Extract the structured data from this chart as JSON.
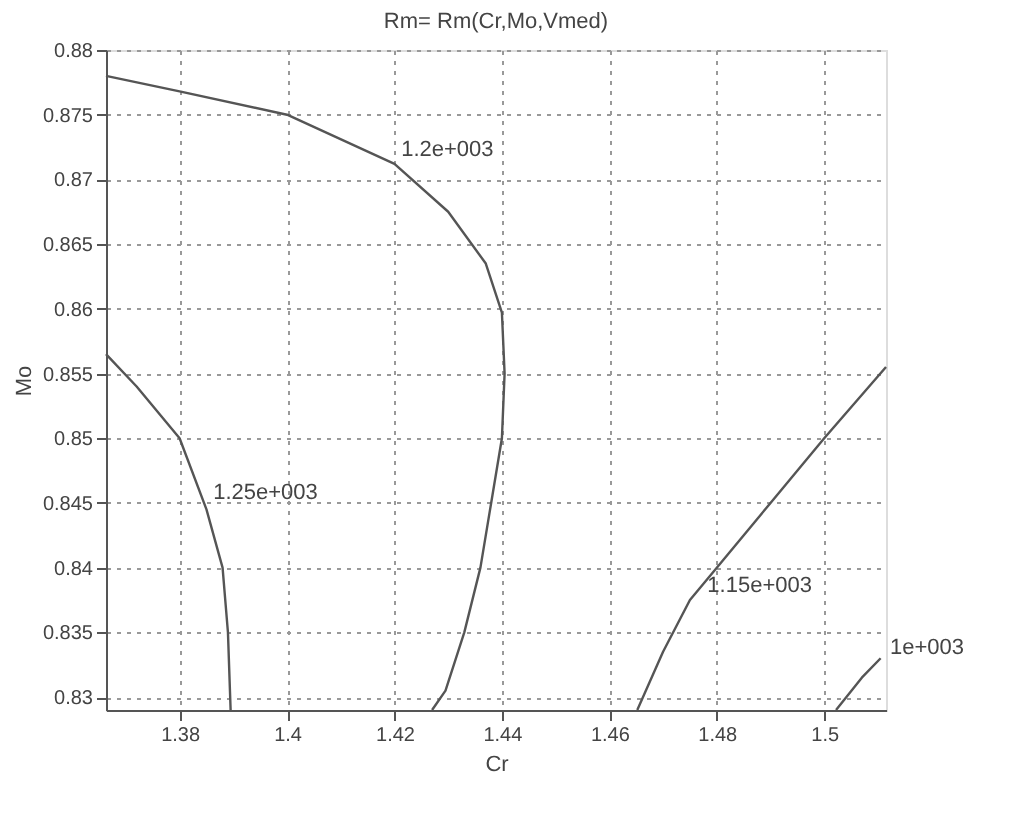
{
  "chart_data": {
    "type": "line",
    "title": "Rm= Rm(Cr,Mo,Vmed)",
    "xlabel": "Cr",
    "ylabel": "Mo",
    "series": [
      {
        "color": "#555555",
        "x": [
          1.3663,
          1.38,
          1.4,
          1.42,
          1.43,
          1.437,
          1.44,
          1.4405,
          1.44,
          1.438,
          1.436,
          1.433,
          1.4295,
          1.427
        ],
        "values": [
          0.878,
          0.8768,
          0.875,
          0.8712,
          0.8675,
          0.8635,
          0.8597,
          0.855,
          0.85,
          0.845,
          0.84,
          0.835,
          0.8305,
          0.829
        ]
      },
      {
        "color": "#555555",
        "x": [
          1.3663,
          1.372,
          1.38,
          1.385,
          1.388,
          1.389,
          1.3895
        ],
        "values": [
          0.8565,
          0.854,
          0.85,
          0.8445,
          0.84,
          0.835,
          0.829
        ]
      },
      {
        "color": "#555555",
        "x": [
          1.4652,
          1.47,
          1.475,
          1.48,
          1.49,
          1.5,
          1.5115
        ],
        "values": [
          0.829,
          0.8335,
          0.8375,
          0.84,
          0.845,
          0.85,
          0.8555
        ]
      },
      {
        "color": "#555555",
        "x": [
          1.5022,
          1.507,
          1.5105
        ],
        "values": [
          0.829,
          0.8315,
          0.833
        ]
      }
    ],
    "annotations": [
      {
        "text": "1.2e+003",
        "x": 1.4205,
        "y": 0.8715
      },
      {
        "text": "1.25e+003",
        "x": 1.3855,
        "y": 0.845
      },
      {
        "text": "1.15e+003",
        "x": 1.4775,
        "y": 0.8378
      },
      {
        "text": "1e+003",
        "x": 1.5115,
        "y": 0.833
      }
    ],
    "xlim": [
      1.3663,
      1.5115
    ],
    "ylim": [
      0.829,
      0.88
    ],
    "xticks": [
      1.38,
      1.4,
      1.42,
      1.44,
      1.46,
      1.48,
      1.5
    ],
    "yticks": [
      0.83,
      0.835,
      0.84,
      0.845,
      0.85,
      0.855,
      0.86,
      0.865,
      0.87,
      0.875,
      0.88
    ],
    "grid": true,
    "line_style": "solid",
    "marker": "none",
    "legend": false
  }
}
